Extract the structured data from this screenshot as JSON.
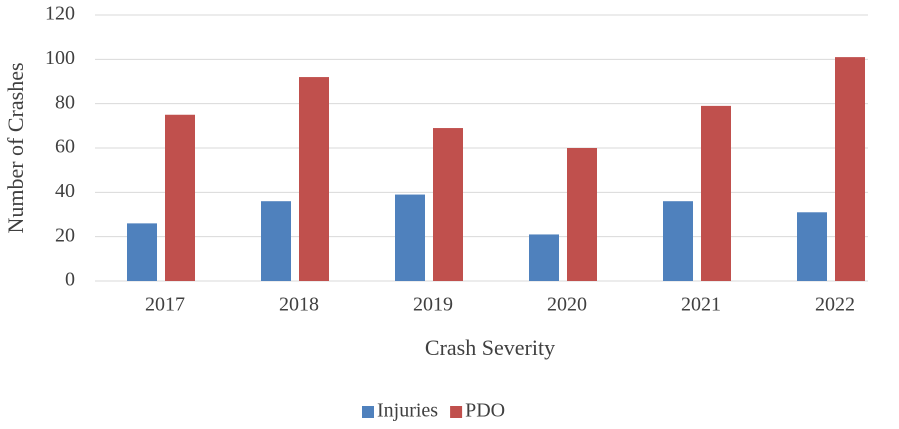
{
  "chart_data": {
    "type": "bar",
    "x_label": "Crash Severity",
    "y_label": "Number of Crashes",
    "categories": [
      "2017",
      "2018",
      "2019",
      "2020",
      "2021",
      "2022"
    ],
    "series": [
      {
        "name": "Injuries",
        "color": "#4f81bd",
        "values": [
          26,
          36,
          39,
          21,
          36,
          31
        ]
      },
      {
        "name": "PDO",
        "color": "#c0504d",
        "values": [
          75,
          92,
          69,
          60,
          79,
          101
        ]
      }
    ],
    "ylim": [
      0,
      120
    ],
    "yticks": [
      0,
      20,
      40,
      60,
      80,
      100,
      120
    ],
    "grid": true,
    "legend": "bottom"
  }
}
